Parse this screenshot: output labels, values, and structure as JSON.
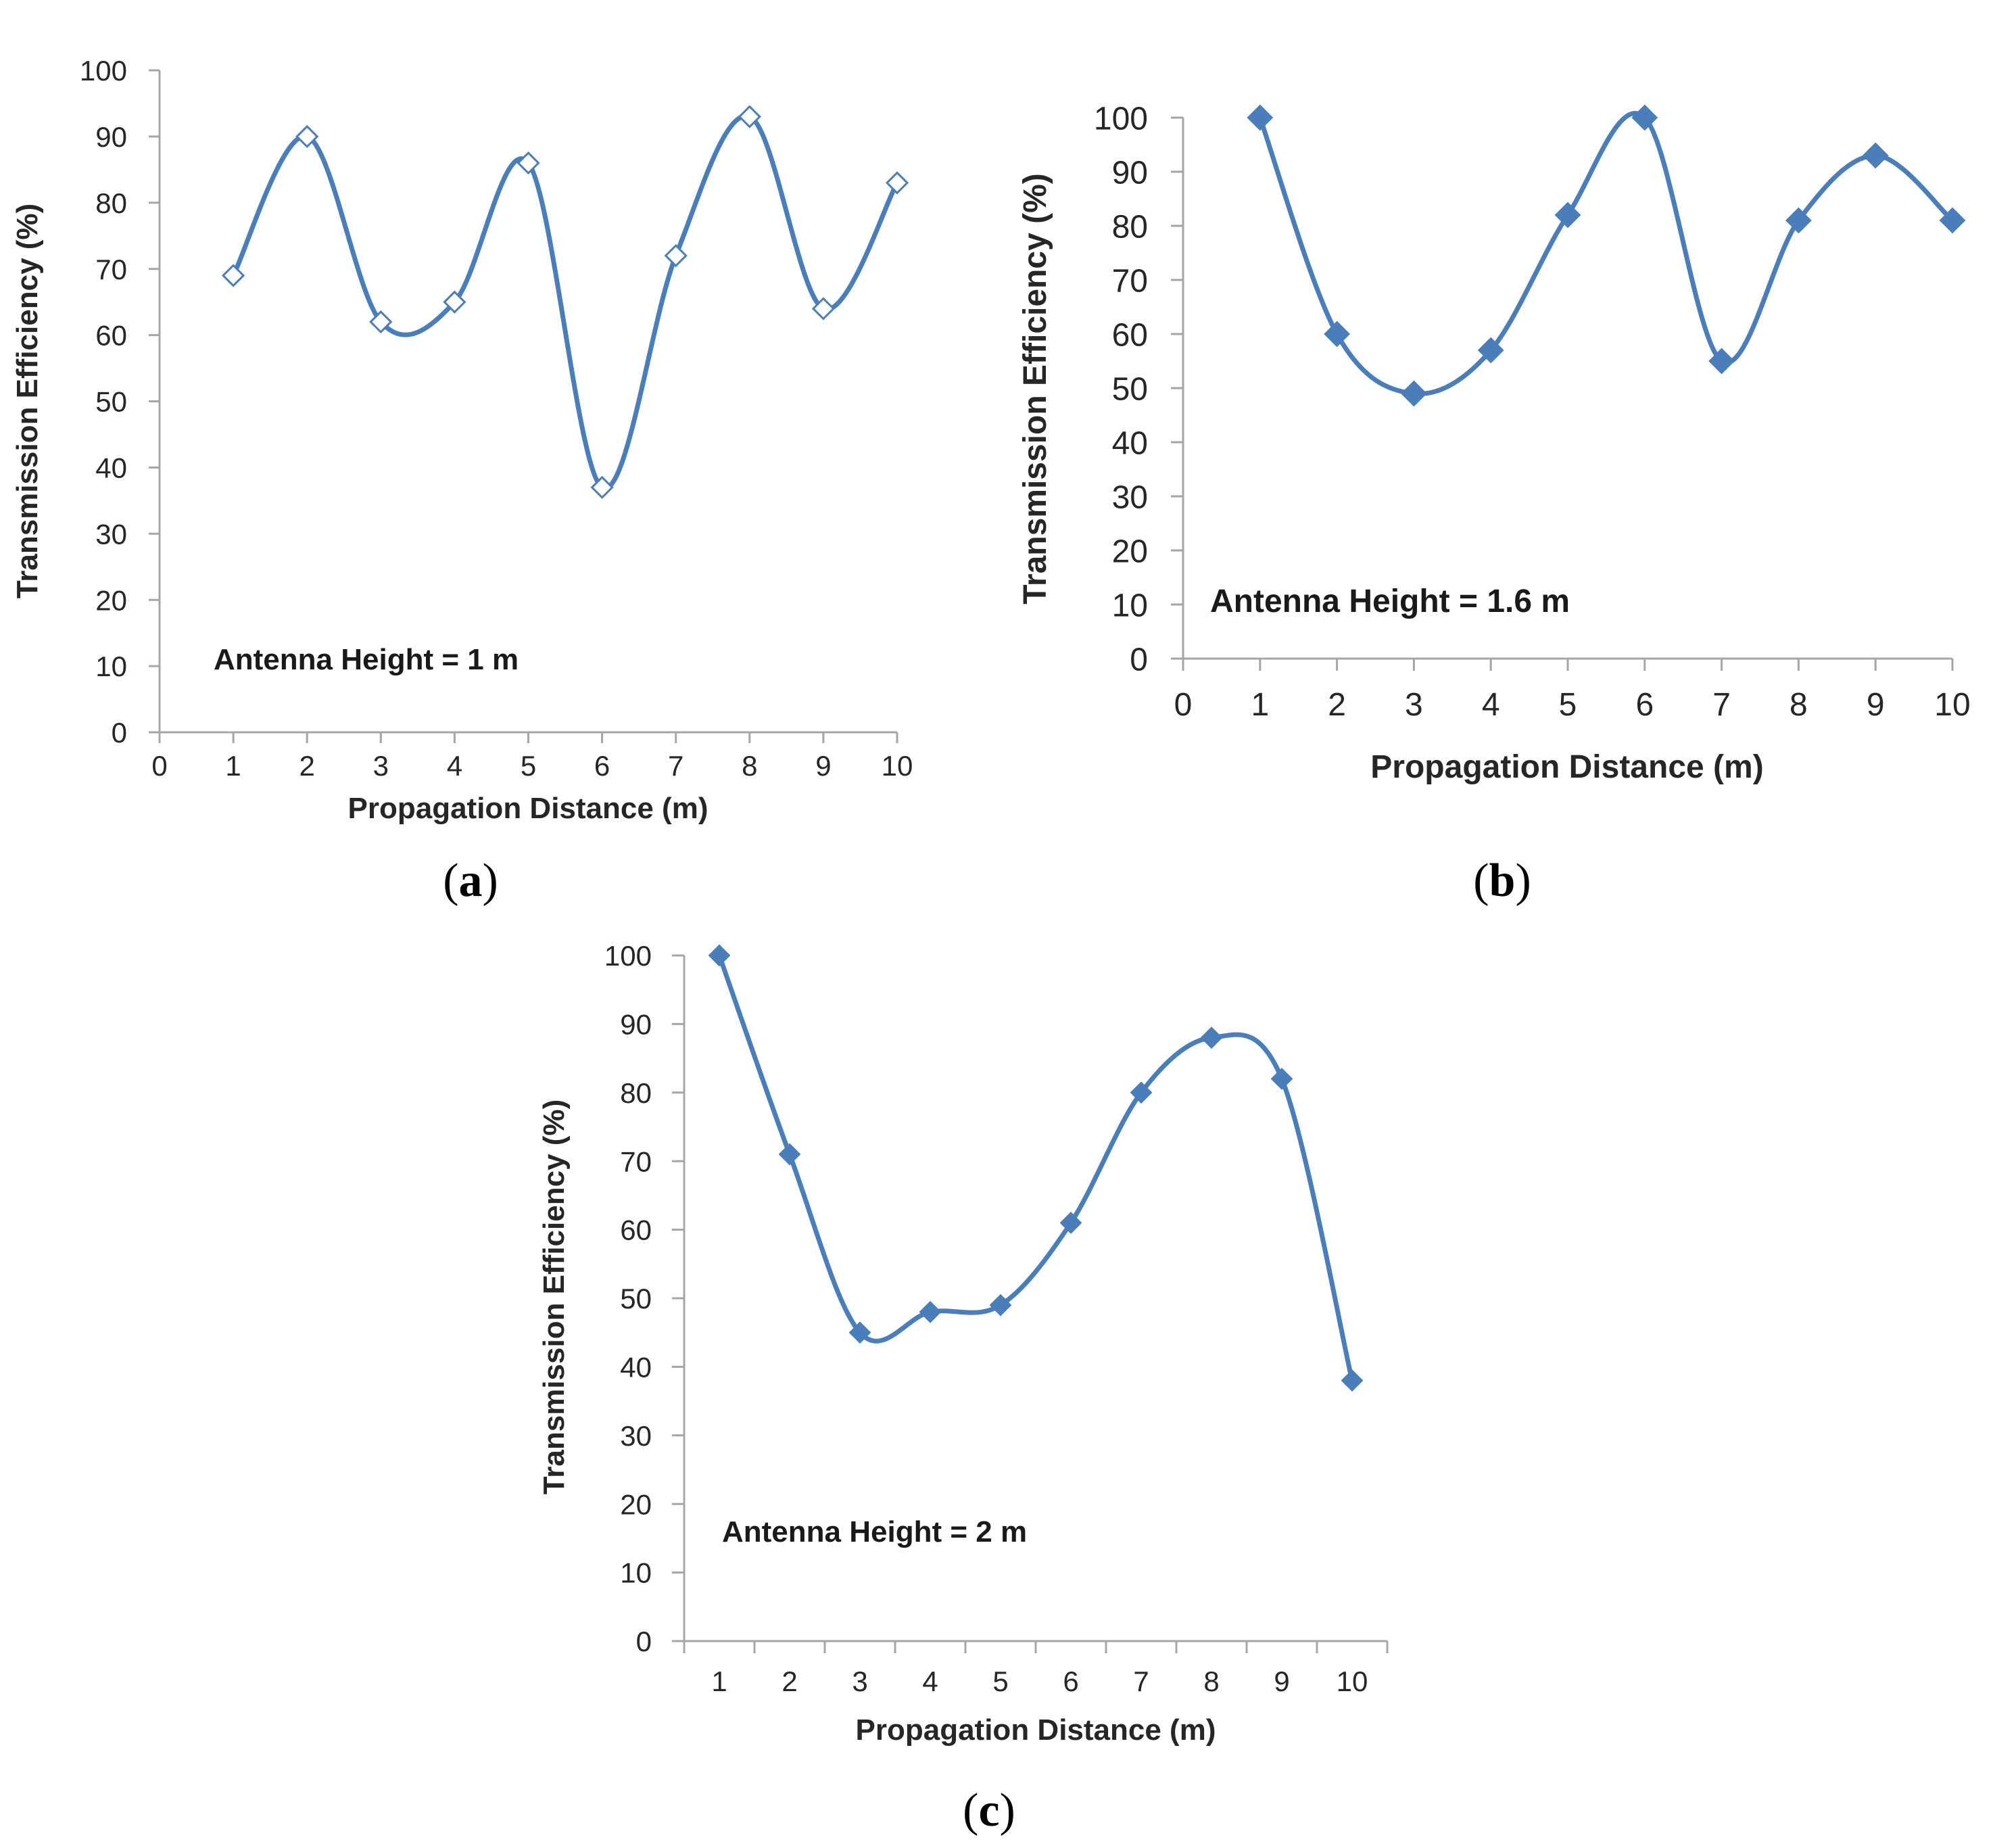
{
  "colors": {
    "series": "#4a7ebb",
    "axis": "#a6a6a6",
    "text": "#262626"
  },
  "chart_data": [
    {
      "panel": "a",
      "panel_label": "a",
      "type": "scatter",
      "smooth": true,
      "marker": "diamond-open",
      "title": "",
      "annotation": "Antenna Height = 1  m",
      "xlabel": "Propagation Distance (m)",
      "ylabel": "Transmission Efficiency (%)",
      "xlim": [
        0,
        10
      ],
      "ylim": [
        0,
        100
      ],
      "xticks": [
        "0",
        "1",
        "2",
        "3",
        "4",
        "5",
        "6",
        "7",
        "8",
        "9",
        "10"
      ],
      "yticks": [
        "0",
        "10",
        "20",
        "30",
        "40",
        "50",
        "60",
        "70",
        "80",
        "90",
        "100"
      ],
      "series": [
        {
          "name": "Transmission Efficiency",
          "x": [
            1,
            2,
            3,
            4,
            5,
            6,
            7,
            8,
            9,
            10
          ],
          "y": [
            69,
            90,
            62,
            65,
            86,
            37,
            72,
            93,
            64,
            83
          ]
        }
      ]
    },
    {
      "panel": "b",
      "panel_label": "b",
      "type": "scatter",
      "smooth": true,
      "marker": "diamond-filled",
      "title": "",
      "annotation": "Antenna Height = 1.6 m",
      "xlabel": "Propagation Distance (m)",
      "ylabel": "Transmission Efficiency (%)",
      "xlim": [
        0,
        10
      ],
      "ylim": [
        0,
        100
      ],
      "xticks": [
        "0",
        "1",
        "2",
        "3",
        "4",
        "5",
        "6",
        "7",
        "8",
        "9",
        "10"
      ],
      "yticks": [
        "0",
        "10",
        "20",
        "30",
        "40",
        "50",
        "60",
        "70",
        "80",
        "90",
        "100"
      ],
      "series": [
        {
          "name": "Transmission Efficiency",
          "x": [
            1,
            2,
            3,
            4,
            5,
            6,
            7,
            8,
            9,
            10
          ],
          "y": [
            100,
            60,
            49,
            57,
            82,
            100,
            55,
            81,
            93,
            81
          ]
        }
      ]
    },
    {
      "panel": "c",
      "panel_label": "c",
      "type": "line",
      "smooth": true,
      "marker": "diamond-filled",
      "title": "",
      "annotation": "Antenna Height = 2  m",
      "xlabel": "Propagation Distance (m)",
      "ylabel": "Transmission Efficiency (%)",
      "xlim": [
        0.5,
        10.5
      ],
      "ylim": [
        0,
        100
      ],
      "xticks": [
        "1",
        "2",
        "3",
        "4",
        "5",
        "6",
        "7",
        "8",
        "9",
        "10"
      ],
      "yticks": [
        "0",
        "10",
        "20",
        "30",
        "40",
        "50",
        "60",
        "70",
        "80",
        "90",
        "100"
      ],
      "series": [
        {
          "name": "Transmission Efficiency",
          "x": [
            1,
            2,
            3,
            4,
            5,
            6,
            7,
            8,
            9,
            10
          ],
          "y": [
            100,
            71,
            45,
            48,
            49,
            61,
            80,
            88,
            82,
            38
          ]
        }
      ]
    }
  ]
}
